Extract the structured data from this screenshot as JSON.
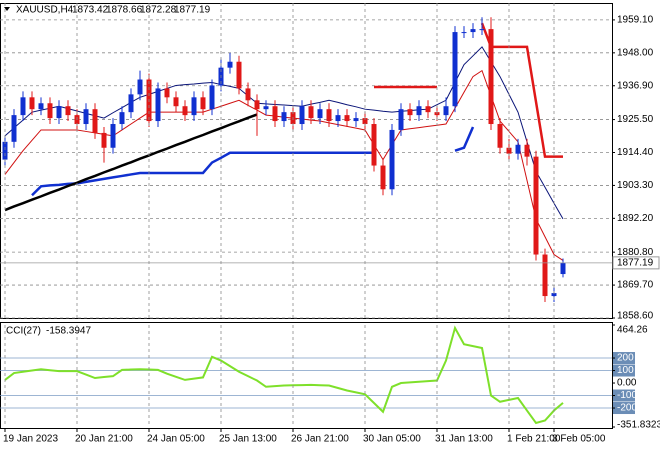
{
  "chart_data": [
    {
      "type": "candlestick",
      "title": "XAUUSD,H4",
      "categories": [
        "19 Jan 2023",
        null,
        null,
        null,
        null,
        null,
        null,
        null,
        "20 Jan 21:00",
        null,
        null,
        null,
        null,
        null,
        null,
        null,
        "24 Jan 05:00",
        null,
        null,
        null,
        null,
        null,
        null,
        null,
        "25 Jan 13:00",
        null,
        null,
        null,
        null,
        null,
        null,
        null,
        "26 Jan 21:00",
        null,
        null,
        null,
        null,
        null,
        null,
        null,
        "30 Jan 05:00",
        null,
        null,
        null,
        null,
        null,
        null,
        null,
        "31 Jan 13:00",
        null,
        null,
        null,
        null,
        null,
        null,
        null,
        "1 Feb 21:00",
        null,
        null,
        null,
        null,
        "3 Feb 05:00",
        null
      ],
      "open": [
        1912,
        1918,
        1927,
        1933,
        1929,
        1931,
        1926,
        1930,
        1927,
        1924,
        1929,
        1921,
        1916,
        1924,
        1928,
        1934,
        1939,
        1925,
        1936,
        1933,
        1930,
        1927,
        1933,
        1929,
        1937,
        1943,
        1945,
        1936,
        1932,
        1929,
        1930,
        1925,
        1928,
        1924,
        1930,
        1926,
        1929,
        1925,
        1927,
        1925,
        1926,
        1924,
        1910,
        1902,
        1922,
        1929,
        1927,
        1930,
        1928,
        1927,
        1930,
        1955,
        1955,
        1956,
        1956,
        1924,
        1916,
        1914,
        1917,
        1913,
        1880,
        1866,
        1873.42
      ],
      "high": [
        1920,
        1929,
        1935,
        1935,
        1933,
        1933,
        1932,
        1932,
        1929,
        1931,
        1931,
        1923,
        1926,
        1930,
        1936,
        1942,
        1941,
        1938,
        1938,
        1935,
        1932,
        1935,
        1935,
        1939,
        1946,
        1948,
        1947,
        1938,
        1934,
        1932,
        1932,
        1930,
        1930,
        1932,
        1932,
        1931,
        1931,
        1929,
        1929,
        1928,
        1928,
        1926,
        1912,
        1924,
        1931,
        1931,
        1932,
        1932,
        1930,
        1933,
        1957,
        1957,
        1958,
        1960,
        1960,
        1926,
        1919,
        1919,
        1919,
        1915,
        1882,
        1869,
        1878.66
      ],
      "low": [
        1910,
        1916,
        1925,
        1927,
        1927,
        1924,
        1924,
        1925,
        1922,
        1922,
        1919,
        1911,
        1914,
        1922,
        1926,
        1932,
        1923,
        1923,
        1931,
        1928,
        1925,
        1925,
        1927,
        1927,
        1935,
        1941,
        1934,
        1930,
        1920,
        1927,
        1923,
        1923,
        1922,
        1922,
        1924,
        1924,
        1923,
        1923,
        1923,
        1923,
        1922,
        1908,
        1900,
        1900,
        1920,
        1925,
        1925,
        1926,
        1925,
        1925,
        1928,
        1953,
        1953,
        1954,
        1922,
        1914,
        1912,
        1912,
        1910,
        1878,
        1864,
        1864,
        1872.28
      ],
      "close": [
        1918,
        1927,
        1933,
        1929,
        1931,
        1926,
        1930,
        1927,
        1924,
        1929,
        1921,
        1916,
        1924,
        1928,
        1934,
        1939,
        1925,
        1936,
        1933,
        1930,
        1927,
        1933,
        1929,
        1937,
        1943,
        1945,
        1936,
        1932,
        1929,
        1930,
        1925,
        1928,
        1924,
        1930,
        1926,
        1929,
        1925,
        1927,
        1925,
        1926,
        1924,
        1910,
        1902,
        1922,
        1929,
        1927,
        1930,
        1928,
        1927,
        1930,
        1955,
        1955,
        1956,
        1956,
        1924,
        1916,
        1914,
        1917,
        1913,
        1880,
        1866,
        1867,
        1877.19
      ],
      "up_color": "#1030d0",
      "down_color": "#e01818",
      "ylim": [
        1858.6,
        1964.8
      ],
      "yticks": [
        {
          "value": 1959.1,
          "label": "1959.10"
        },
        {
          "value": 1948.0,
          "label": "1948.00"
        },
        {
          "value": 1936.9,
          "label": "1936.90"
        },
        {
          "value": 1925.5,
          "label": "1925.50"
        },
        {
          "value": 1914.4,
          "label": "1914.40"
        },
        {
          "value": 1903.3,
          "label": "1903.30"
        },
        {
          "value": 1892.2,
          "label": "1892.20"
        },
        {
          "value": 1880.8,
          "label": "1880.80"
        },
        {
          "value": 1869.7,
          "label": "1869.70"
        },
        {
          "value": 1858.6,
          "label": "1858.60"
        }
      ],
      "grid": true,
      "series": [
        {
          "color": "#0a1478",
          "width": 1,
          "values": [
            1920,
            1922.7,
            1925.3,
            1928,
            1928.7,
            1929.3,
            1930,
            1929.2,
            1928.4,
            1927.6,
            1926.8,
            1926,
            1927.8,
            1929.5,
            1931.3,
            1933,
            1934,
            1935,
            1936,
            1937,
            1937.3,
            1937.5,
            1937.8,
            1938,
            1937.3,
            1936.7,
            1936,
            1933.5,
            1931,
            1930.8,
            1930.6,
            1930.4,
            1930.2,
            1930,
            1930.7,
            1931.3,
            1932,
            1931.3,
            1930.5,
            1929.8,
            1929,
            1928.7,
            1928.3,
            1928,
            1928.3,
            1928.5,
            1928.8,
            1929,
            1930.5,
            1932,
            1938,
            1944,
            1947,
            1950,
            1945,
            1940,
            1934,
            1928,
            1918,
            1908,
            1902.7,
            1897.3,
            1892
          ]
        },
        {
          "color": "#d01010",
          "width": 1,
          "values": [
            1907,
            1911,
            1915,
            1918.5,
            1922,
            1922,
            1922,
            1922,
            1922,
            1921.5,
            1921,
            1920.5,
            1920,
            1922,
            1924,
            1926,
            1928,
            1928,
            1928,
            1928,
            1928,
            1928,
            1928,
            1929,
            1930,
            1931,
            1932,
            1930.3,
            1928.7,
            1927,
            1926.7,
            1926.3,
            1926,
            1925.7,
            1925.3,
            1925,
            1924.4,
            1923.8,
            1923.2,
            1922.6,
            1922,
            1917,
            1912,
            1917,
            1922,
            1922.4,
            1922.8,
            1923.2,
            1923.6,
            1924,
            1929.3,
            1934.7,
            1940,
            1942,
            1933.5,
            1925,
            1921.5,
            1918,
            1905,
            1892,
            1886,
            1880,
            1878
          ]
        },
        {
          "color": "#e01818",
          "width": 2.5,
          "values": [
            null,
            null,
            null,
            null,
            null,
            null,
            null,
            null,
            null,
            null,
            null,
            null,
            null,
            null,
            null,
            null,
            null,
            null,
            null,
            null,
            null,
            null,
            null,
            null,
            null,
            null,
            null,
            null,
            null,
            null,
            null,
            null,
            null,
            null,
            null,
            null,
            null,
            null,
            null,
            null,
            null,
            1936.5,
            1936.5,
            1936.5,
            1936.5,
            1936.5,
            1936.5,
            1936.5,
            1936.5,
            null,
            null,
            null,
            null,
            1958,
            1950,
            1950,
            1950,
            1950,
            1950,
            1931.5,
            1913,
            1913,
            1913
          ]
        },
        {
          "color": "#1030d0",
          "width": 2.5,
          "values": [
            null,
            null,
            null,
            1900,
            1903,
            1903.3,
            1903.5,
            1903.8,
            1904,
            1904.5,
            1905,
            1905.5,
            1906,
            1906.5,
            1907,
            1907.5,
            1907.5,
            1907.5,
            1907.5,
            1907.5,
            1907.5,
            1907.5,
            1907.5,
            1911,
            1912.6,
            1914.3,
            1914.3,
            1914.3,
            1914.3,
            1914.3,
            1914.3,
            1914.3,
            1914.3,
            1914.3,
            1914.3,
            1914.3,
            1914.3,
            1914.3,
            1914.3,
            1914.3,
            1914.3,
            1914.3,
            null,
            null,
            null,
            null,
            null,
            null,
            null,
            null,
            1915,
            1916,
            1923,
            null,
            null,
            null,
            null,
            null,
            null,
            null,
            null,
            null,
            null
          ]
        },
        {
          "color": "#000000",
          "width": 2.5,
          "values": [
            1895,
            1896.2,
            1897.3,
            1898.5,
            1899.6,
            1900.8,
            1901.9,
            1903.1,
            1904.2,
            1905.4,
            1906.5,
            1907.7,
            1908.8,
            1910,
            1911.1,
            1912.3,
            1913.4,
            1914.6,
            1915.7,
            1916.9,
            1918,
            1919.2,
            1920.3,
            1921.5,
            1922.6,
            1923.8,
            1924.9,
            1926.1,
            1927.2,
            null,
            null,
            null,
            null,
            null,
            null,
            null,
            null,
            null,
            null,
            null,
            null,
            null,
            null,
            null,
            null,
            null,
            null,
            null,
            null,
            null,
            null,
            null,
            null,
            null,
            null,
            null,
            null,
            null,
            null,
            null,
            null,
            null,
            null
          ]
        }
      ]
    },
    {
      "type": "line",
      "title": "CCI(27)",
      "ylim": [
        -351.8323,
        464.26
      ],
      "yticks": [
        464.26,
        200,
        100,
        {
          "value": 0,
          "label": "0.00"
        },
        -100,
        -200,
        -351.8323
      ],
      "series": [
        {
          "color": "#7ee02a",
          "width": 2,
          "values": [
            25,
            80,
            90,
            100,
            110,
            102,
            95,
            95,
            95,
            68,
            40,
            48,
            55,
            105,
            108,
            110,
            108,
            105,
            75,
            50,
            25,
            35,
            45,
            210,
            180,
            135,
            90,
            55,
            20,
            -30,
            -25,
            -20,
            -18,
            -17,
            -15,
            -18,
            -20,
            -40,
            -60,
            -75,
            -90,
            -160,
            -230,
            -30,
            0,
            5,
            10,
            15,
            20,
            180,
            440,
            310,
            295,
            280,
            -100,
            -150,
            -135,
            -120,
            -220,
            -320,
            -300,
            -220,
            -158.3947
          ]
        }
      ]
    }
  ]
}
